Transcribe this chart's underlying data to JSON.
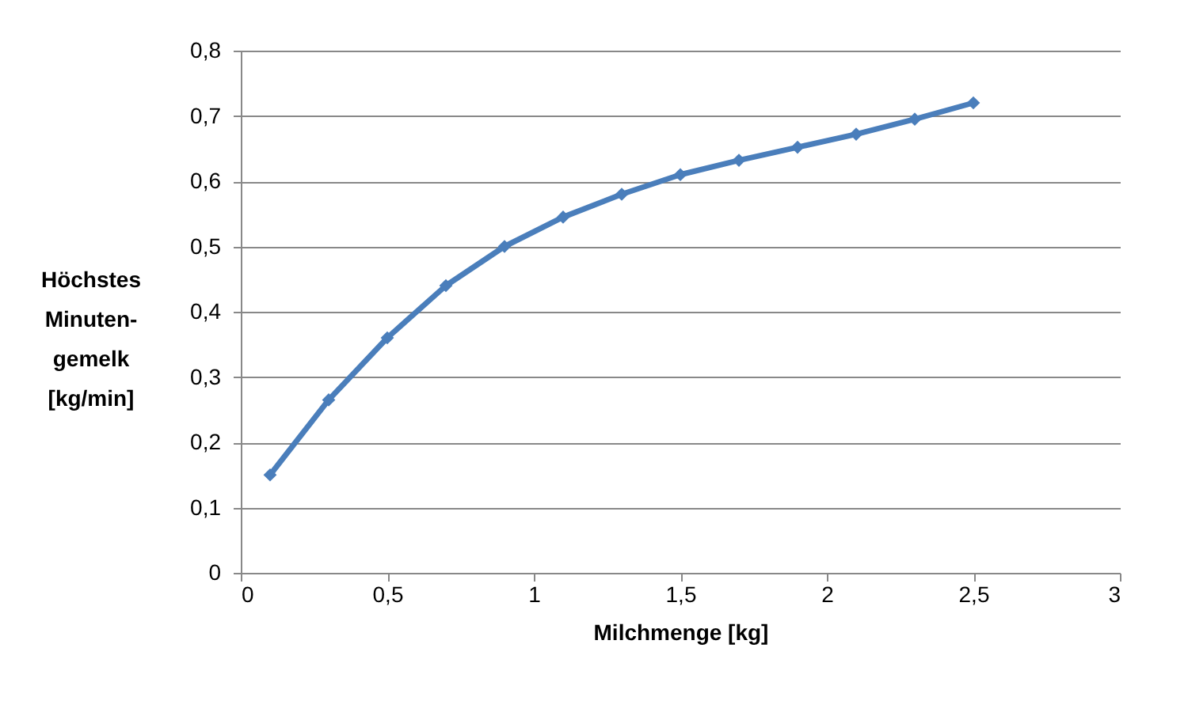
{
  "chart_data": {
    "type": "line",
    "xlabel": "Milchmenge [kg]",
    "ylabel": "Höchstes\nMinuten-\ngemelk\n[kg/min]",
    "x": [
      0.1,
      0.3,
      0.5,
      0.7,
      0.9,
      1.1,
      1.3,
      1.5,
      1.7,
      1.9,
      2.1,
      2.3,
      2.5
    ],
    "series": [
      {
        "color": "#4a7ebb",
        "values": [
          0.15,
          0.265,
          0.36,
          0.44,
          0.5,
          0.545,
          0.58,
          0.61,
          0.632,
          0.652,
          0.672,
          0.695,
          0.72
        ]
      }
    ],
    "xlim": [
      0,
      3
    ],
    "xticks": [
      0,
      {
        "value": 0.5,
        "label": "0,5"
      },
      1,
      {
        "value": 1.5,
        "label": "1,5"
      },
      2,
      {
        "value": 2.5,
        "label": "2,5"
      },
      3
    ],
    "ylim": [
      0,
      0.8
    ],
    "yticks": [
      0,
      {
        "value": 0.1,
        "label": "0,1"
      },
      {
        "value": 0.2,
        "label": "0,2"
      },
      {
        "value": 0.3,
        "label": "0,3"
      },
      {
        "value": 0.4,
        "label": "0,4"
      },
      {
        "value": 0.5,
        "label": "0,5"
      },
      {
        "value": 0.6,
        "label": "0,6"
      },
      {
        "value": 0.7,
        "label": "0,7"
      },
      {
        "value": 0.8,
        "label": "0,8"
      }
    ],
    "grid": "y",
    "marker": "diamond",
    "line_style": "solid"
  }
}
